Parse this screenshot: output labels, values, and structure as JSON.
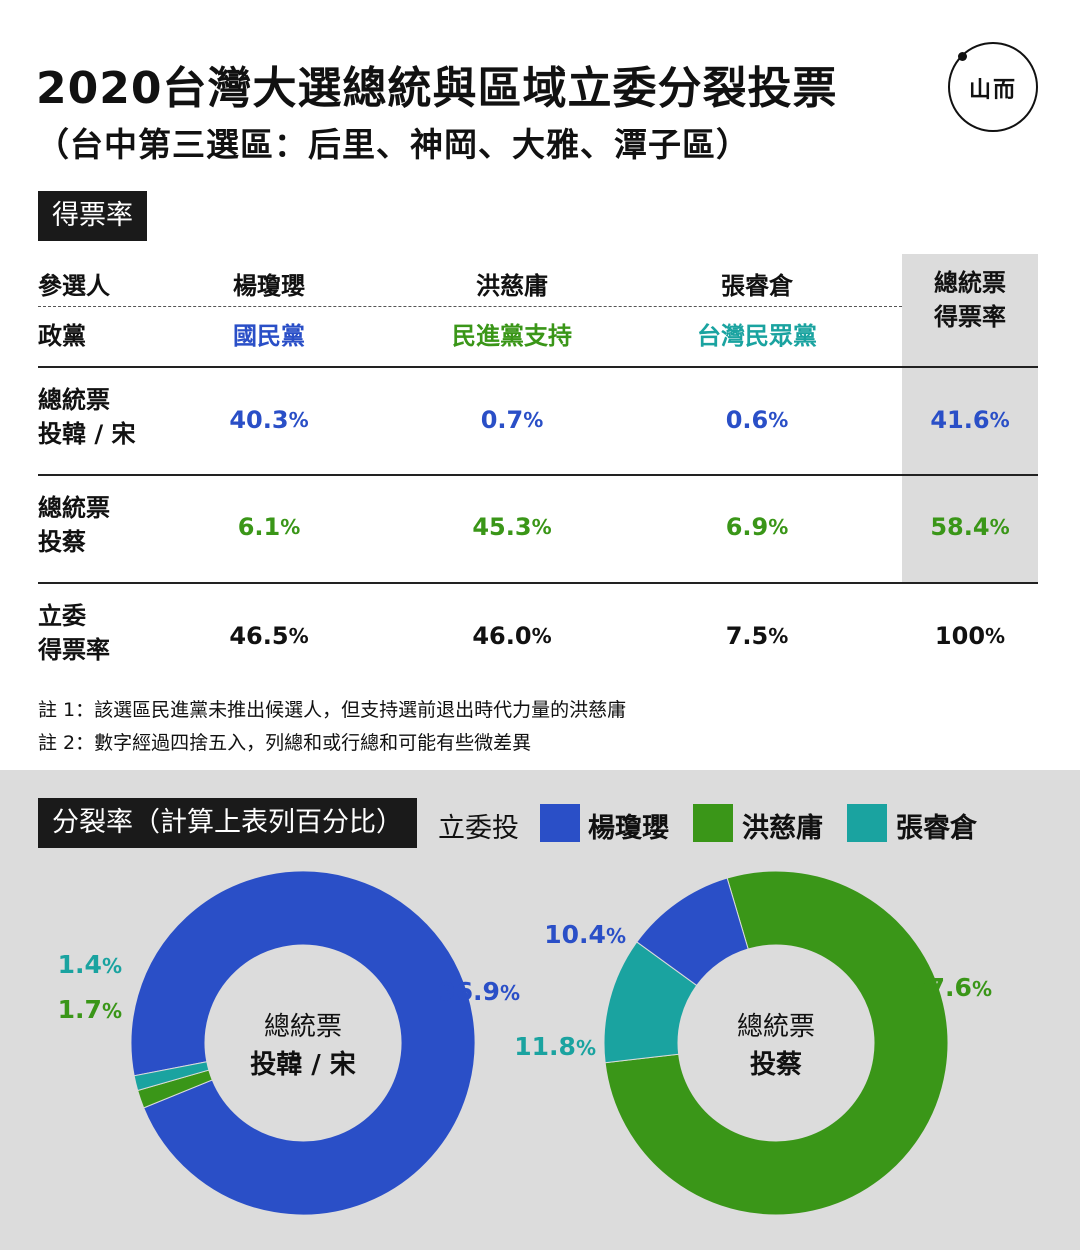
{
  "title": "2020台灣大選總統與區域立委分裂投票",
  "subtitle": "（台中第三選區：后里、神岡、大雅、潭子區）",
  "logo": {
    "glyph": "山而",
    "icon": "initium-logo"
  },
  "colors": {
    "blue": "#2a4fc7",
    "green": "#3a9618",
    "teal": "#1aa3a0",
    "panel": "#dcdcdc",
    "dark": "#1a1a1a"
  },
  "table_section_label": "得票率",
  "table": {
    "header_candidate_label": "參選人",
    "header_party_label": "政黨",
    "candidates": [
      {
        "name": "楊瓊瓔",
        "party": "國民黨",
        "party_color": "blue"
      },
      {
        "name": "洪慈庸",
        "party": "民進黨支持",
        "party_color": "green"
      },
      {
        "name": "張睿倉",
        "party": "台灣民眾黨",
        "party_color": "teal"
      }
    ],
    "total_header": "總統票得票率",
    "total_header_lines": [
      "總統票",
      "得票率"
    ],
    "rows": [
      {
        "label_lines": [
          "總統票",
          "投韓 / 宋"
        ],
        "values": [
          "40.3",
          "0.7",
          "0.6"
        ],
        "total": "41.6",
        "color": "blue"
      },
      {
        "label_lines": [
          "總統票",
          "投蔡"
        ],
        "values": [
          "6.1",
          "45.3",
          "6.9"
        ],
        "total": "58.4",
        "color": "green"
      },
      {
        "label_lines": [
          "立委",
          "得票率"
        ],
        "values": [
          "46.5",
          "46.0",
          "7.5"
        ],
        "total": "100",
        "color": "black"
      }
    ],
    "pct_sign": "%"
  },
  "notes": [
    "註 1：該選區民進黨未推出候選人，但支持選前退出時代力量的洪慈庸",
    "註 2：數字經過四捨五入，列總和或行總和可能有些微差異"
  ],
  "split_section_label": "分裂率（計算上表列百分比）",
  "legend": {
    "title": "立委投",
    "items": [
      {
        "name": "楊瓊瓔",
        "color": "blue"
      },
      {
        "name": "洪慈庸",
        "color": "green"
      },
      {
        "name": "張睿倉",
        "color": "teal"
      }
    ]
  },
  "chart_data": [
    {
      "type": "pie",
      "donut": true,
      "center_lines": [
        "總統票",
        "投韓 / 宋"
      ],
      "slices": [
        {
          "label": "楊瓊瓔",
          "value": 96.9,
          "display": "96.9",
          "color": "blue"
        },
        {
          "label": "洪慈庸",
          "value": 1.7,
          "display": "1.7",
          "color": "green"
        },
        {
          "label": "張睿倉",
          "value": 1.4,
          "display": "1.4",
          "color": "teal"
        }
      ]
    },
    {
      "type": "pie",
      "donut": true,
      "center_lines": [
        "總統票",
        "投蔡"
      ],
      "slices": [
        {
          "label": "洪慈庸",
          "value": 77.6,
          "display": "77.6",
          "color": "green"
        },
        {
          "label": "張睿倉",
          "value": 11.8,
          "display": "11.8",
          "color": "teal"
        },
        {
          "label": "楊瓊瓔",
          "value": 10.4,
          "display": "10.4",
          "color": "blue"
        }
      ]
    }
  ]
}
